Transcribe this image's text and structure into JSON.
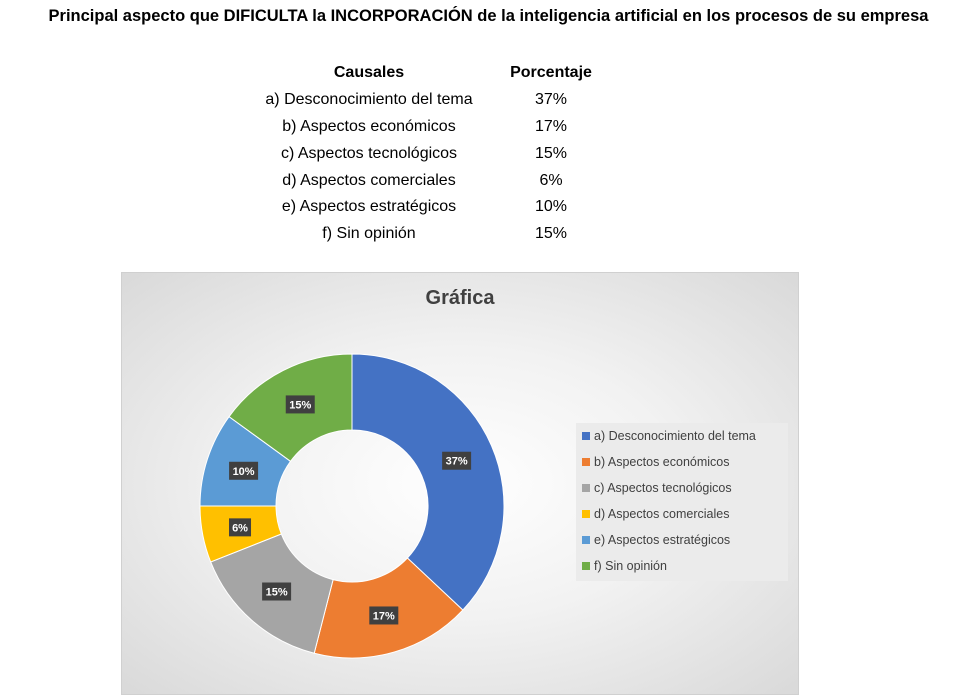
{
  "header": {
    "title": "Principal aspecto que DIFICULTA la INCORPORACIÓN de la inteligencia artificial en los procesos de su empresa"
  },
  "table": {
    "columns": [
      "Causales",
      "Porcentaje"
    ],
    "rows": [
      [
        "a) Desconocimiento del tema",
        "37%"
      ],
      [
        "b) Aspectos económicos",
        "17%"
      ],
      [
        "c) Aspectos tecnológicos",
        "15%"
      ],
      [
        "d) Aspectos comerciales",
        "6%"
      ],
      [
        "e) Aspectos estratégicos",
        "10%"
      ],
      [
        "f) Sin opinión",
        "15%"
      ]
    ]
  },
  "chart_data": {
    "type": "pie",
    "subtype": "donut",
    "title": "Gráfica",
    "categories": [
      "a) Desconocimiento del tema",
      "b) Aspectos económicos",
      "c) Aspectos tecnológicos",
      "d) Aspectos comerciales",
      "e) Aspectos estratégicos",
      "f) Sin opinión"
    ],
    "values": [
      37,
      17,
      15,
      6,
      10,
      15
    ],
    "labels": [
      "37%",
      "17%",
      "15%",
      "6%",
      "10%",
      "15%"
    ],
    "colors": [
      "#4472C4",
      "#ED7D31",
      "#A5A5A5",
      "#FFC000",
      "#5B9BD5",
      "#70AD47"
    ],
    "legend": "right"
  }
}
